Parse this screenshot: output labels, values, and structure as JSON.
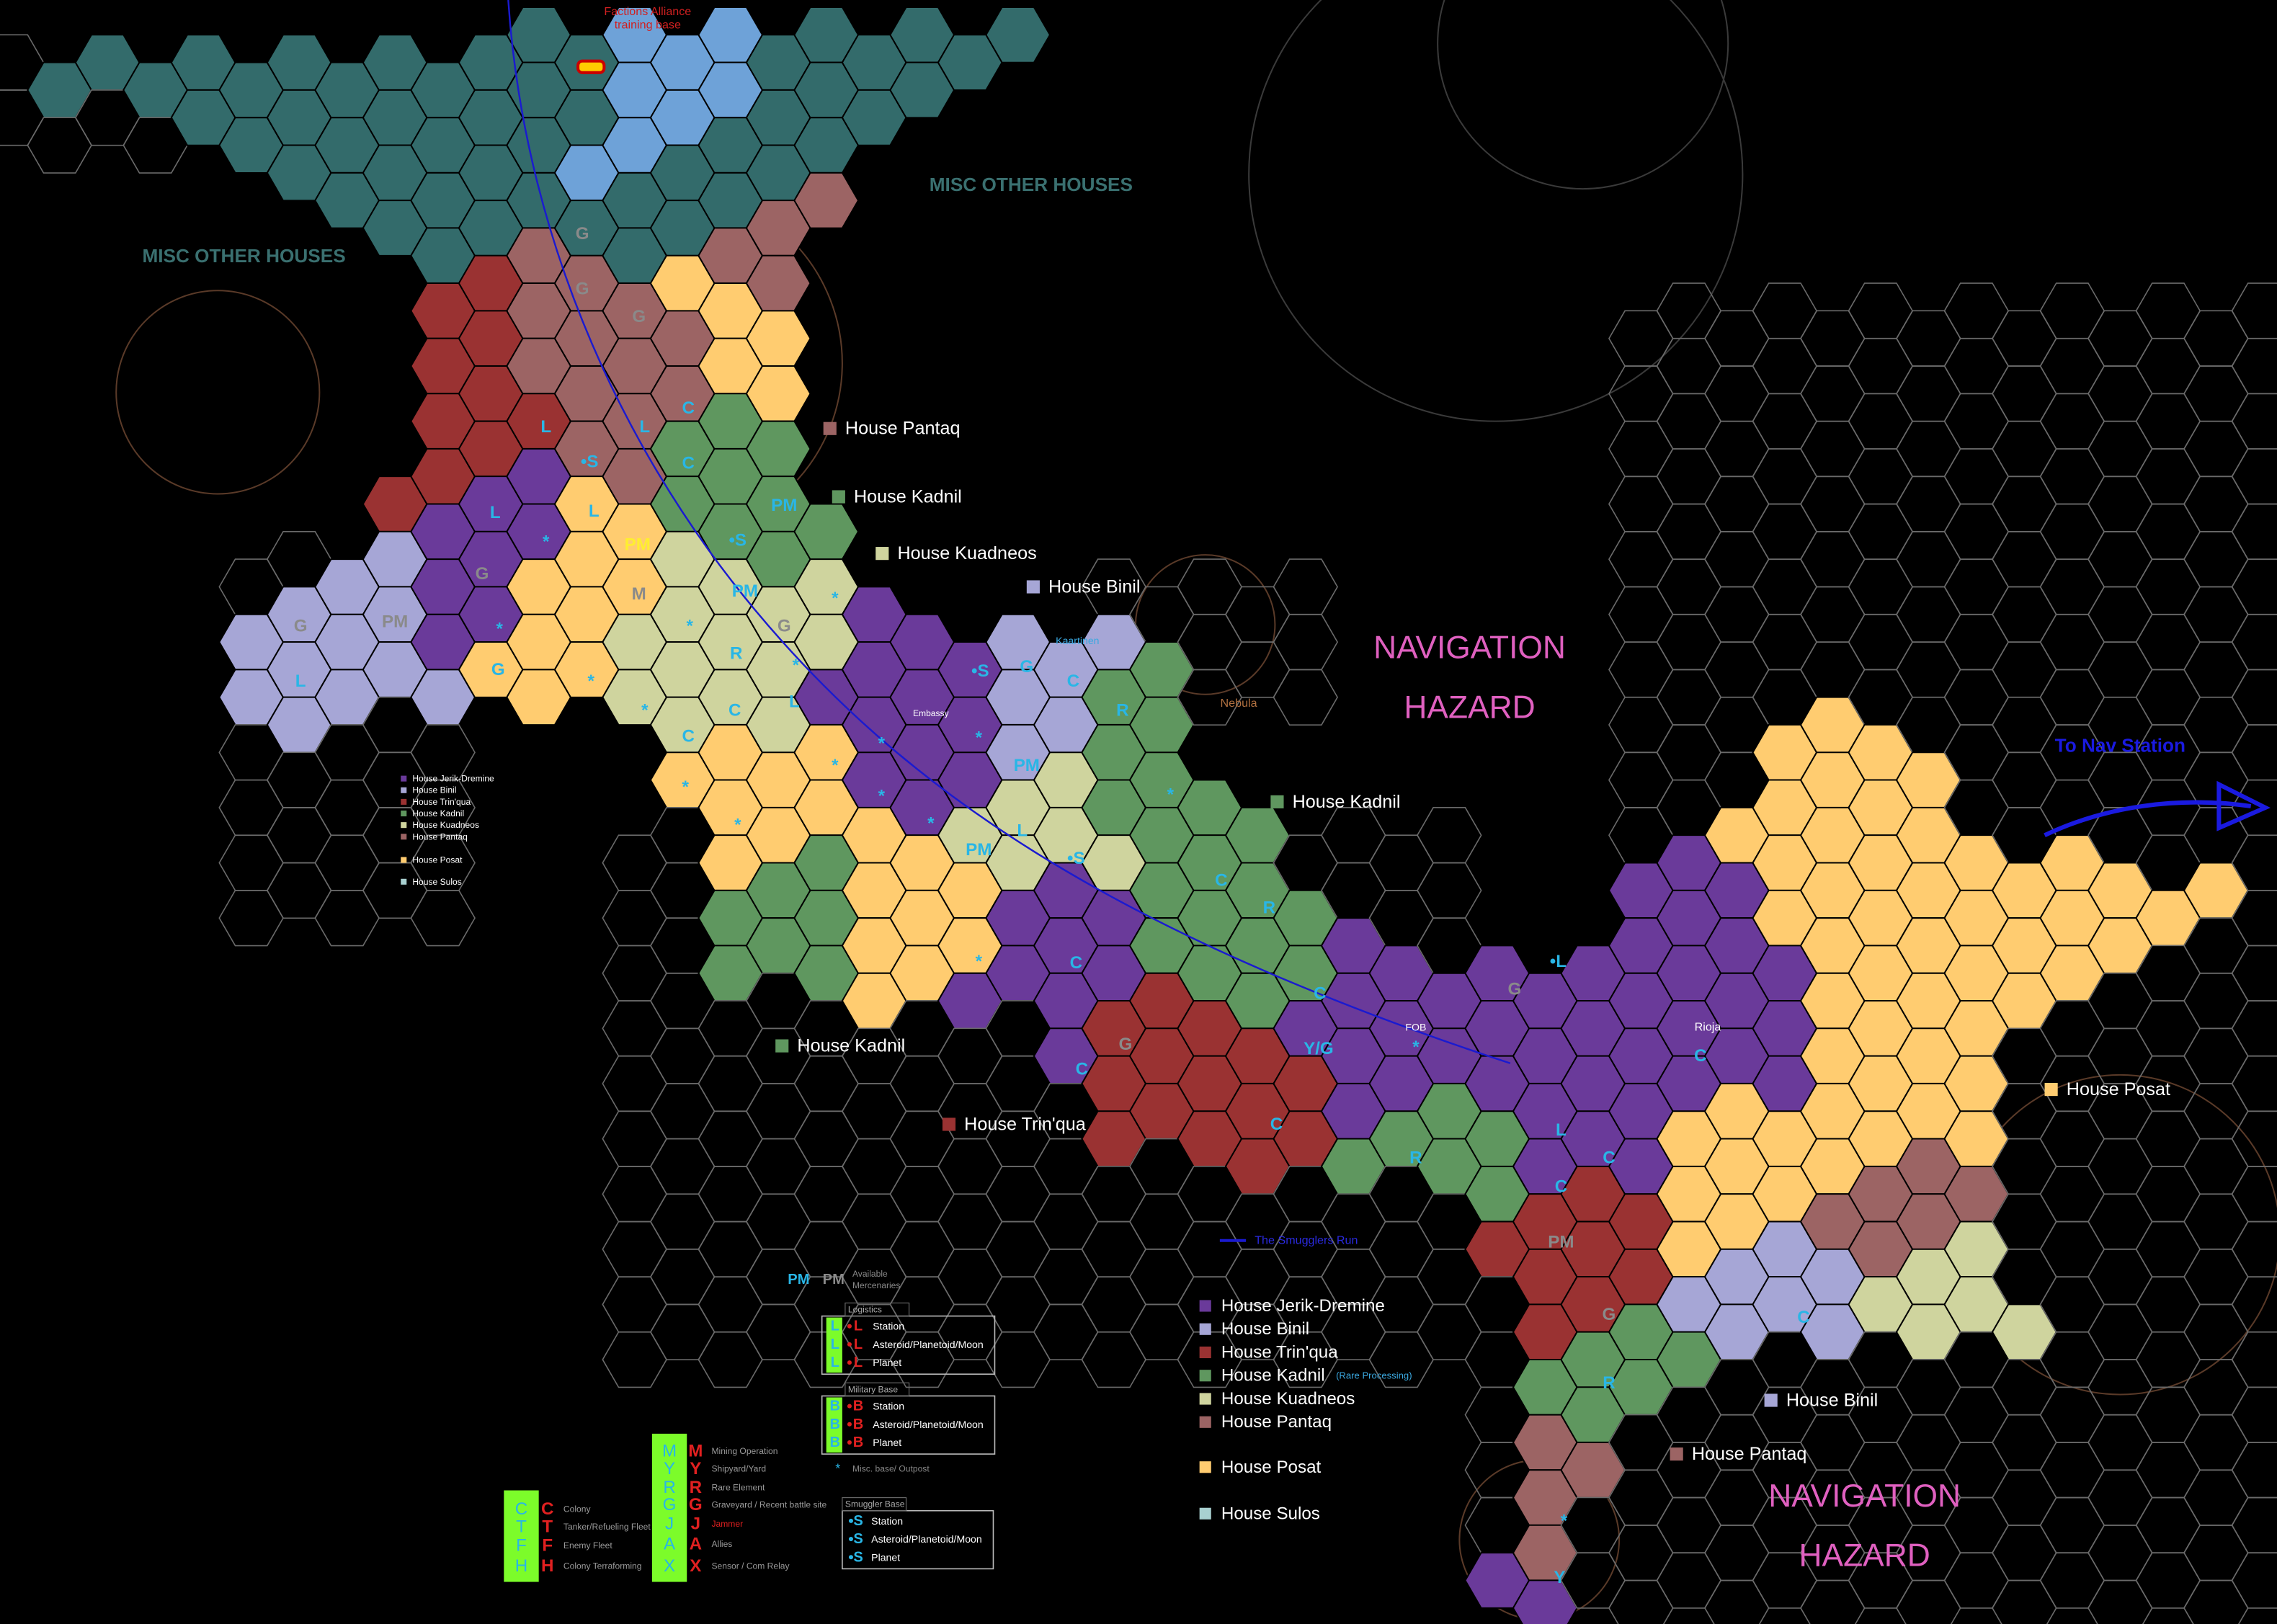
{
  "header": {
    "training_base": [
      "Factions Alliance",
      "training base"
    ]
  },
  "misc_labels": [
    "MISC OTHER HOUSES",
    "MISC OTHER HOUSES"
  ],
  "hazard_labels": [
    [
      "NAVIGATION",
      "HAZARD"
    ],
    [
      "NAVIGATION",
      "HAZARD"
    ]
  ],
  "house_labels": [
    "House Pantaq",
    "House Kadnil",
    "House Kuadneos",
    "House Binil",
    "House Kadnil",
    "House Kadnil",
    "House Trin'qua",
    "House Posat",
    "House Binil",
    "House Pantaq"
  ],
  "place_labels": [
    "Kaartinen",
    "Nebula",
    "Embassy",
    "FOB",
    "Rioja",
    "The Smugglers Run",
    "To Nav Station"
  ],
  "hex_markers": [
    "G",
    "G",
    "G",
    "L",
    "•S",
    "L",
    "C",
    "C",
    "L",
    "L",
    "PM",
    "•S",
    "PM",
    "G",
    "PM",
    "G",
    "L",
    "*",
    "*",
    "G",
    "*",
    "PM",
    "*",
    "*",
    "G",
    "R",
    "*",
    "C",
    "L",
    "*",
    "C",
    "*",
    "*",
    "G",
    "C",
    "•S",
    "R",
    "*",
    "*",
    "*",
    "*",
    "*",
    "PM",
    "PM",
    "L",
    "•S",
    "*",
    "C",
    "R",
    "*",
    "C",
    "G",
    "C",
    "Y/G",
    "*",
    "C",
    "•L",
    "G",
    "C",
    "L",
    "C",
    "R",
    "C",
    "C",
    "PM",
    "G",
    "R",
    "C",
    "*",
    "Y",
    "M"
  ],
  "small_legend": [
    "House Jerik-Dremine",
    "House Binil",
    "House Trin'qua",
    "House Kadnil",
    "House Kuadneos",
    "House Pantaq",
    "House Posat",
    "House Sulos"
  ],
  "legend": {
    "houses": [
      "House Jerik-Dremine",
      "House Binil",
      "House Trin'qua",
      "House Kadnil",
      "House Kuadneos",
      "House Pantaq",
      "House Posat",
      "House Sulos"
    ],
    "note": "(Rare Processing)"
  },
  "key": {
    "mercenaries": {
      "symbol": "PM",
      "text": [
        "Available",
        "Mercenaries"
      ]
    },
    "logistics": {
      "title": "Logistics",
      "symbol": "L",
      "rows": [
        "Station",
        "Asteroid/Planetoid/Moon",
        "Planet"
      ]
    },
    "military": {
      "title": "Military Base",
      "symbol": "B",
      "rows": [
        "Station",
        "Asteroid/Planetoid/Moon",
        "Planet"
      ]
    },
    "misc": {
      "symbol": "*",
      "label": "Misc. base/ Outpost"
    },
    "smuggler": {
      "title": "Smuggler Base",
      "symbol": "S",
      "rows": [
        "Station",
        "Asteroid/Planetoid/Moon",
        "Planet"
      ]
    },
    "codes": [
      {
        "letter": "M",
        "label": "Mining Operation"
      },
      {
        "letter": "Y",
        "label": "Shipyard/Yard"
      },
      {
        "letter": "R",
        "label": "Rare Element"
      },
      {
        "letter": "G",
        "label": "Graveyard / Recent battle site"
      },
      {
        "letter": "J",
        "label": "Jammer"
      },
      {
        "letter": "A",
        "label": "Allies"
      },
      {
        "letter": "X",
        "label": "Sensor / Com Relay"
      }
    ],
    "fleet_codes": [
      {
        "letter": "C",
        "label": "Colony"
      },
      {
        "letter": "T",
        "label": "Tanker/Refueling Fleet"
      },
      {
        "letter": "F",
        "label": "Enemy Fleet"
      },
      {
        "letter": "H",
        "label": "Colony Terraforming"
      }
    ]
  }
}
